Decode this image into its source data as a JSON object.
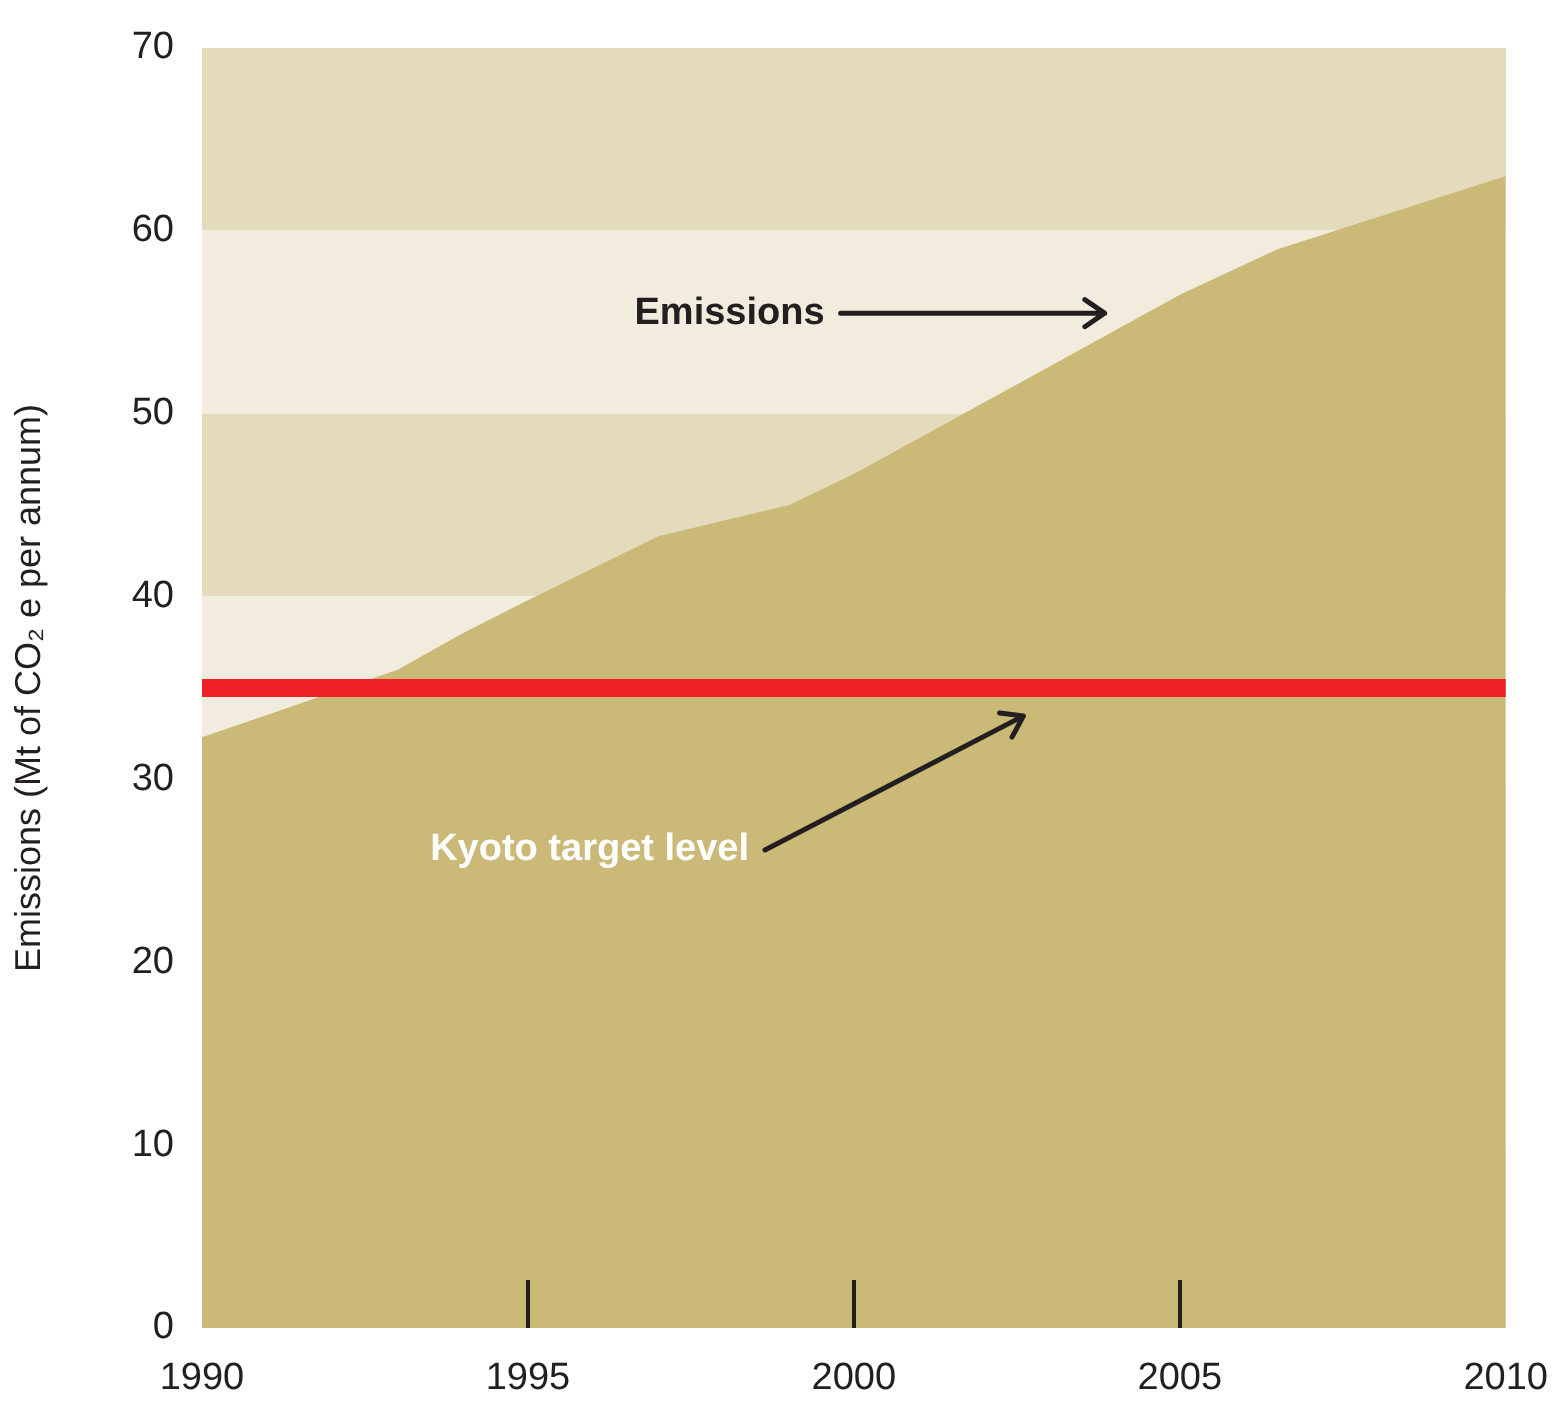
{
  "chart_data": {
    "type": "area",
    "ylabel": "Emissions (Mt of CO₂ e per annum)",
    "x": [
      1990,
      1993,
      1994,
      1995,
      1997,
      1999,
      2000,
      2005,
      2006.5,
      2010
    ],
    "series": [
      {
        "color": "#cbb977",
        "values": [
          32.3,
          36,
          38,
          39.8,
          43.3,
          45,
          46.7,
          56.5,
          59,
          63
        ]
      }
    ],
    "xlim": [
      1990,
      2010
    ],
    "xticks": [
      1990,
      1995,
      2000,
      2005,
      2010
    ],
    "ylim": [
      0,
      70
    ],
    "yticks": [
      0,
      10,
      20,
      30,
      40,
      50,
      60,
      70
    ],
    "legend": false,
    "ref_lines": [
      {
        "axis": "y",
        "value": 35,
        "color": "#ee2024"
      }
    ],
    "annotations": [
      "Emissions",
      "Kyoto target level"
    ]
  }
}
